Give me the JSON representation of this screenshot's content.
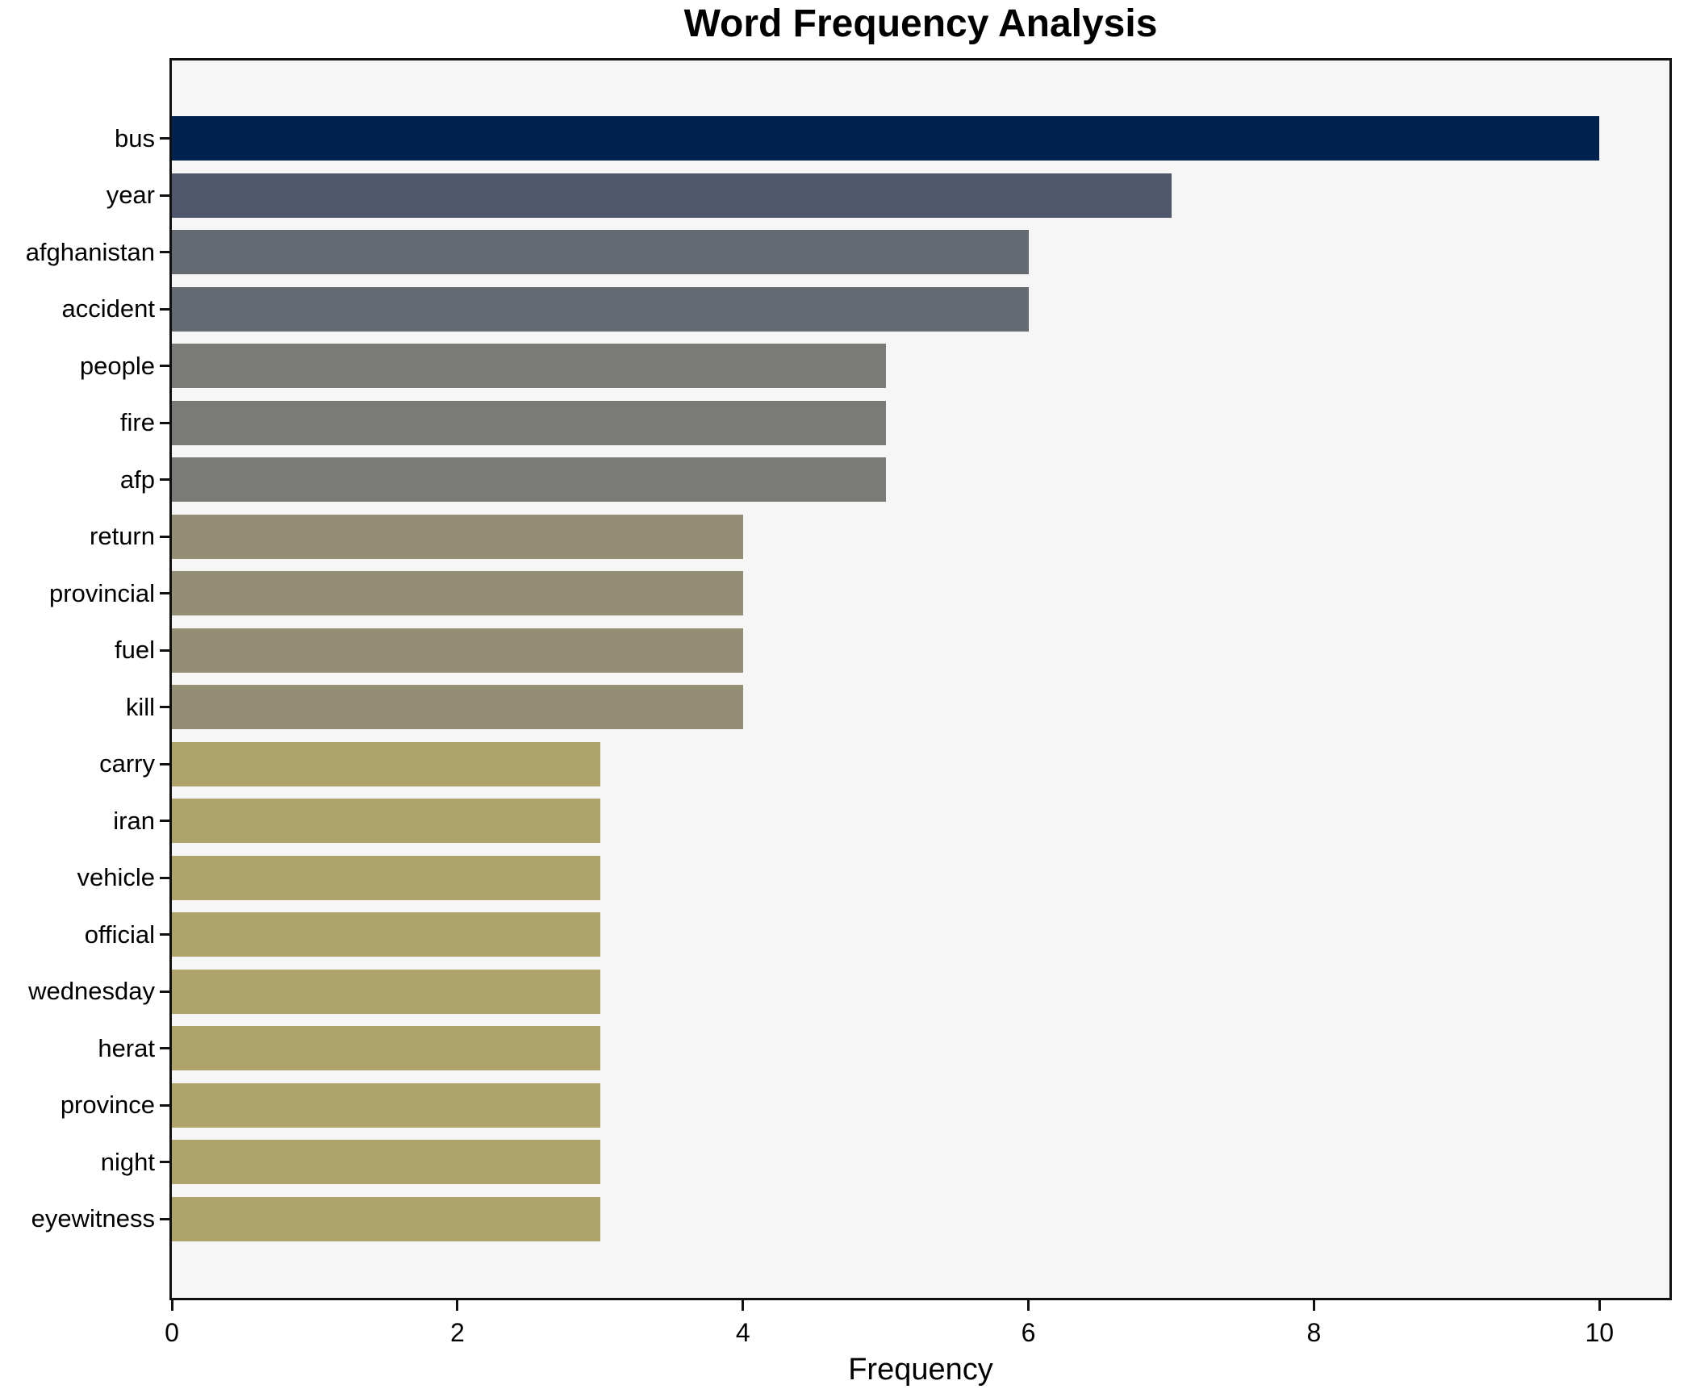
{
  "chart_data": {
    "type": "bar",
    "orientation": "horizontal",
    "title": "Word Frequency Analysis",
    "xlabel": "Frequency",
    "ylabel": "",
    "categories": [
      "bus",
      "year",
      "afghanistan",
      "accident",
      "people",
      "fire",
      "afp",
      "return",
      "provincial",
      "fuel",
      "kill",
      "carry",
      "iran",
      "vehicle",
      "official",
      "wednesday",
      "herat",
      "province",
      "night",
      "eyewitness"
    ],
    "values": [
      10,
      7,
      6,
      6,
      5,
      5,
      5,
      4,
      4,
      4,
      4,
      3,
      3,
      3,
      3,
      3,
      3,
      3,
      3,
      3
    ],
    "bar_colors": [
      "#00224e",
      "#4e576c",
      "#646a71",
      "#646a71",
      "#7a7a76",
      "#7a7a76",
      "#7a7a76",
      "#948e74",
      "#948e74",
      "#948e74",
      "#948e74",
      "#afa36c",
      "#afa36c",
      "#afa36c",
      "#afa36c",
      "#afa36c",
      "#afa36c",
      "#afa36c",
      "#afa36c",
      "#afa36c"
    ],
    "xlim": [
      0,
      10.49
    ],
    "xticks": [
      0,
      2,
      4,
      6,
      8,
      10
    ],
    "grid": false,
    "legend": false,
    "plot_background": "#f6f6f6",
    "figure_background": "#ffffff",
    "axis_color": "#111111",
    "text_color": "#000000"
  }
}
